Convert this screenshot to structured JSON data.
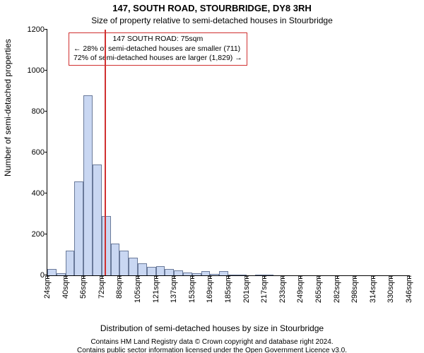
{
  "title": "147, SOUTH ROAD, STOURBRIDGE, DY8 3RH",
  "subtitle": "Size of property relative to semi-detached houses in Stourbridge",
  "ylabel": "Number of semi-detached properties",
  "xlabel": "Distribution of semi-detached houses by size in Stourbridge",
  "footnote1": "Contains HM Land Registry data © Crown copyright and database right 2024.",
  "footnote2": "Contains public sector information licensed under the Open Government Licence v3.0.",
  "chart": {
    "type": "histogram",
    "ylim": [
      0,
      1200
    ],
    "ytick_step": 200,
    "xtick_labels": [
      "24sqm",
      "40sqm",
      "56sqm",
      "72sqm",
      "88sqm",
      "105sqm",
      "121sqm",
      "137sqm",
      "153sqm",
      "169sqm",
      "185sqm",
      "201sqm",
      "217sqm",
      "233sqm",
      "249sqm",
      "265sqm",
      "282sqm",
      "298sqm",
      "314sqm",
      "330sqm",
      "346sqm"
    ],
    "bins": [
      30,
      10,
      120,
      460,
      880,
      540,
      290,
      155,
      120,
      85,
      60,
      40,
      45,
      30,
      25,
      15,
      10,
      20,
      8,
      20,
      4,
      4,
      0,
      4,
      4,
      0,
      0,
      0,
      0,
      0,
      0,
      0,
      0,
      0,
      0,
      0,
      0,
      0,
      0,
      0
    ],
    "bin_count": 40,
    "bar_fill": "#c9d7f2",
    "bar_stroke": "#6a7a9a",
    "background": "#ffffff",
    "marker_x_sqm": 75,
    "x_min": 24,
    "x_max": 346,
    "marker_color": "#d03030"
  },
  "legend": {
    "line1": "147 SOUTH ROAD: 75sqm",
    "line2": "← 28% of semi-detached houses are smaller (711)",
    "line3": "72% of semi-detached houses are larger (1,829) →"
  }
}
